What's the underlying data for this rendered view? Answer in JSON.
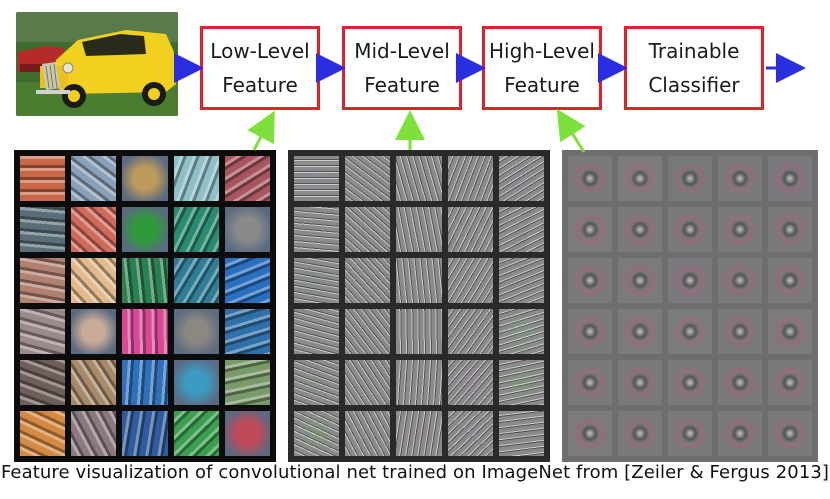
{
  "boxes": [
    {
      "line1": "Low-Level",
      "line2": "Feature"
    },
    {
      "line1": "Mid-Level",
      "line2": "Feature"
    },
    {
      "line1": "High-Level",
      "line2": "Feature"
    },
    {
      "line1": "Trainable",
      "line2": "Classifier"
    }
  ],
  "caption": "Feature visualization of convolutional net trained on ImageNet from [Zeiler & Fergus 2013]",
  "colors": {
    "box_border": "#e0202a",
    "flow_arrow": "#2a2ee0",
    "link_arrow": "#7ee03a",
    "grid_low_bg": "#0c0c0c",
    "grid_mid_bg": "#2a2a2a",
    "grid_high_bg": "#6e6e6e"
  },
  "low_level_filters": [
    "#c86848",
    "#8aa0b8",
    "#bd9b5c",
    "#8fc0c6",
    "#a85560",
    "#5a6e78",
    "#d06a5a",
    "#2f9a3a",
    "#2a8a72",
    "#8a8a8a",
    "#b08070",
    "#e2ba8c",
    "#2a8050",
    "#2f7e96",
    "#2a6fc0",
    "#9a8a88",
    "#c7aa98",
    "#d84a96",
    "#8a8880",
    "#2f70a8",
    "#6f5f5a",
    "#a88a6a",
    "#2f70b8",
    "#3d9ac0",
    "#7a9a6a",
    "#d48a42",
    "#8a7a80",
    "#2f5c9c",
    "#3aa04e",
    "#c04a5a"
  ],
  "mid_level_filters": [
    "#7a8aa8",
    "#8a8a8a",
    "#7c7c7c",
    "#808080",
    "#7a86a8",
    "#8a8a86",
    "#868686",
    "#8a8a8a",
    "#808a80",
    "#847e80",
    "#5a7a6a",
    "#7a8088",
    "#8a8a80",
    "#7c8a7a",
    "#7a847a",
    "#8a7a86",
    "#7a7a7a",
    "#8a8a8a",
    "#7e8a86",
    "#7acc7a",
    "#6a8a6a",
    "#7a7a82",
    "#8a8488",
    "#9a6aa8",
    "#6acc5a",
    "#6acc4a",
    "#7a8080",
    "#8a6a7a",
    "#7a88a0",
    "#7a7a7a"
  ],
  "high_level_filters": [
    "#7a7a7a",
    "#7c7c7c",
    "#767a7a",
    "#7a7a7a",
    "#7a7a7e",
    "#7c7a7c",
    "#7a7a7a",
    "#7a7a7a",
    "#7a7a7a",
    "#7a7a7a",
    "#7a7a7c",
    "#7c7a7a",
    "#7a7a7e",
    "#7a7a7a",
    "#7a7a7a",
    "#7a7a7a",
    "#7c7a7a",
    "#7a7c7a",
    "#7a7a7a",
    "#7c7a7c",
    "#7a7a7a",
    "#7a7a7a",
    "#7a7a7a",
    "#7a7a7a",
    "#7a7a7a",
    "#7c7a7a",
    "#7a7a7a",
    "#7a7a7a",
    "#7a7a7a",
    "#7a7a7a"
  ]
}
